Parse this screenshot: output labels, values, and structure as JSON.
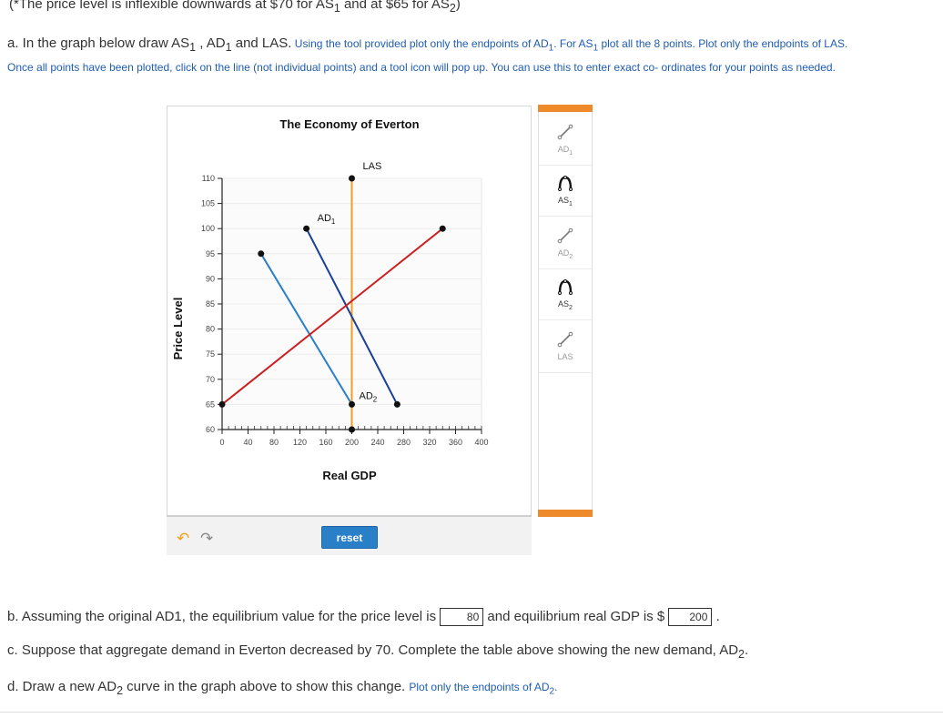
{
  "top_line": {
    "prefix": "(*The price level is inflexible downwards at $70 for AS",
    "sub1": "1",
    "middle": " and at $65 for AS",
    "sub2": "2",
    "suffix": ")"
  },
  "instructions": {
    "part_a_lead": "a. In the graph below draw AS",
    "part_a_sub1": "1",
    "part_a_mid": " , AD",
    "part_a_sub2": "1",
    "part_a_tail": " and LAS.",
    "blue_text_1": " Using the tool provided plot only the endpoints of AD",
    "blue_sub": "1",
    "blue_text_2": ". For AS",
    "blue_sub2": "1",
    "blue_text_3": " plot all the 8 points. Plot only the endpoints of LAS. Once all points have been plotted, click on the line (not individual points) and a tool icon will pop up.  You can use this to enter exact co- ordinates for your points as needed."
  },
  "graph": {
    "title": "The Economy of Everton",
    "xlabel": "Real GDP",
    "ylabel": "Price Level",
    "labels": {
      "las": "LAS",
      "ad1_main": "AD",
      "ad1_sub": "1",
      "ad2_main": "AD",
      "ad2_sub": "2"
    },
    "colors": {
      "las": "#f39c1f",
      "ad1": "#1a3f9a",
      "ad2": "#2a7fc9",
      "as1": "#cc1f1f"
    }
  },
  "chart_data": {
    "type": "line",
    "title": "The Economy of Everton",
    "xlabel": "Real GDP",
    "ylabel": "Price Level",
    "xlim": [
      0,
      400
    ],
    "ylim": [
      60,
      110
    ],
    "x_ticks": [
      0,
      40,
      80,
      120,
      160,
      200,
      240,
      280,
      320,
      360,
      400
    ],
    "y_ticks": [
      60,
      65,
      70,
      75,
      80,
      85,
      90,
      95,
      100,
      105,
      110
    ],
    "series": [
      {
        "name": "LAS",
        "points": [
          [
            200,
            60
          ],
          [
            200,
            110
          ]
        ]
      },
      {
        "name": "AD1",
        "points": [
          [
            130,
            100
          ],
          [
            270,
            65
          ]
        ]
      },
      {
        "name": "AD2",
        "points": [
          [
            60,
            95
          ],
          [
            200,
            65
          ]
        ]
      },
      {
        "name": "AS1",
        "points": [
          [
            0,
            65
          ],
          [
            340,
            100
          ]
        ]
      }
    ]
  },
  "controls": {
    "reset": "reset",
    "undo": "↶",
    "redo": "↷"
  },
  "toolbar": {
    "tools": [
      {
        "main": "AD",
        "sub": "1",
        "kind": "line",
        "active": false
      },
      {
        "main": "AS",
        "sub": "1",
        "kind": "curve",
        "active": true
      },
      {
        "main": "AD",
        "sub": "2",
        "kind": "line",
        "active": false
      },
      {
        "main": "AS",
        "sub": "2",
        "kind": "curve",
        "active": true
      },
      {
        "main": "LAS",
        "sub": "",
        "kind": "line",
        "active": false
      }
    ]
  },
  "questions": {
    "b_lead": "b. Assuming the original AD1, the equilibrium value for the price level is ",
    "b_price": "80",
    "b_mid": " and equilibrium real GDP is $ ",
    "b_gdp": "200",
    "b_end": " .",
    "c_lead": "c. Suppose that aggregate demand in Everton decreased by 70. Complete the table above showing the new demand, AD",
    "c_sub": "2",
    "c_end": ".",
    "d_lead": "d. Draw a new AD",
    "d_sub": "2",
    "d_mid": " curve in the graph above to show this change. ",
    "d_blue": "Plot only the endpoints of AD",
    "d_blue_sub": "2",
    "d_blue_end": "."
  }
}
